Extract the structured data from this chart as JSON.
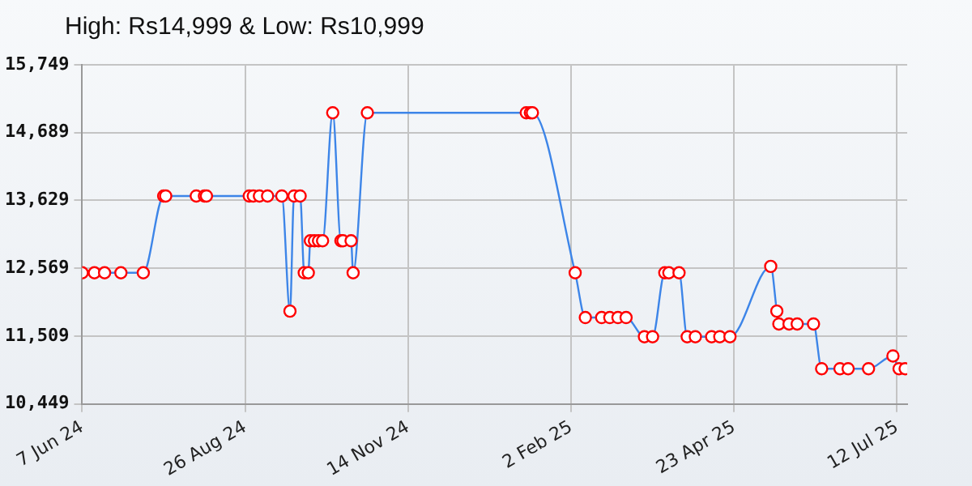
{
  "chart_data": {
    "type": "line",
    "title": "High: Rs14,999 & Low: Rs10,999",
    "x": [
      "2024-06-07",
      "2024-06-13",
      "2024-06-18",
      "2024-06-26",
      "2024-07-07",
      "2024-07-17",
      "2024-07-18",
      "2024-08-02",
      "2024-08-06",
      "2024-08-07",
      "2024-08-28",
      "2024-08-30",
      "2024-09-02",
      "2024-09-06",
      "2024-09-13",
      "2024-09-17",
      "2024-09-19",
      "2024-09-22",
      "2024-09-24",
      "2024-09-26",
      "2024-09-27",
      "2024-09-29",
      "2024-10-01",
      "2024-10-03",
      "2024-10-08",
      "2024-10-12",
      "2024-10-13",
      "2024-10-17",
      "2024-10-18",
      "2024-10-25",
      "2025-01-11",
      "2025-01-13",
      "2025-01-14",
      "2025-02-04",
      "2025-02-09",
      "2025-02-17",
      "2025-02-21",
      "2025-02-25",
      "2025-03-01",
      "2025-03-10",
      "2025-03-14",
      "2025-03-20",
      "2025-03-22",
      "2025-03-27",
      "2025-03-31",
      "2025-04-04",
      "2025-04-12",
      "2025-04-16",
      "2025-04-21",
      "2025-05-11",
      "2025-05-14",
      "2025-05-15",
      "2025-05-20",
      "2025-05-24",
      "2025-06-01",
      "2025-06-05",
      "2025-06-14",
      "2025-06-18",
      "2025-06-28",
      "2025-07-10",
      "2025-07-13",
      "2025-07-16"
    ],
    "series": [
      {
        "color": "#3d85e8",
        "values": [
          12499,
          12499,
          12499,
          12499,
          12499,
          13699,
          13699,
          13699,
          13699,
          13699,
          13699,
          13699,
          13699,
          13699,
          13699,
          11899,
          13699,
          13699,
          12499,
          12499,
          12999,
          12999,
          12999,
          12999,
          14999,
          12999,
          12999,
          12999,
          12499,
          14999,
          14999,
          14999,
          14999,
          12499,
          11799,
          11799,
          11799,
          11799,
          11799,
          11499,
          11499,
          12499,
          12499,
          12499,
          11499,
          11499,
          11499,
          11499,
          11499,
          12599,
          11899,
          11699,
          11699,
          11699,
          11699,
          10999,
          10999,
          10999,
          10999,
          11199,
          10999,
          10999
        ]
      }
    ],
    "xlim": [
      "2024-06-07",
      "2025-07-17"
    ],
    "xticks": [
      {
        "value": "2024-06-07",
        "label": "7 Jun 24"
      },
      {
        "value": "2024-08-26",
        "label": "26 Aug 24"
      },
      {
        "value": "2024-11-14",
        "label": "14 Nov 24"
      },
      {
        "value": "2025-02-02",
        "label": "2 Feb 25"
      },
      {
        "value": "2025-04-23",
        "label": "23 Apr 25"
      },
      {
        "value": "2025-07-12",
        "label": "12 Jul 25"
      }
    ],
    "ylim": [
      10449,
      15749
    ],
    "yticks": [
      {
        "value": 10449,
        "label": "10,449"
      },
      {
        "value": 11509,
        "label": "11,509"
      },
      {
        "value": 12569,
        "label": "12,569"
      },
      {
        "value": 13629,
        "label": "13,629"
      },
      {
        "value": 14689,
        "label": "14,689"
      },
      {
        "value": 15749,
        "label": "15,749"
      }
    ],
    "grid": true,
    "marker": "circle",
    "line_style": "solid"
  }
}
